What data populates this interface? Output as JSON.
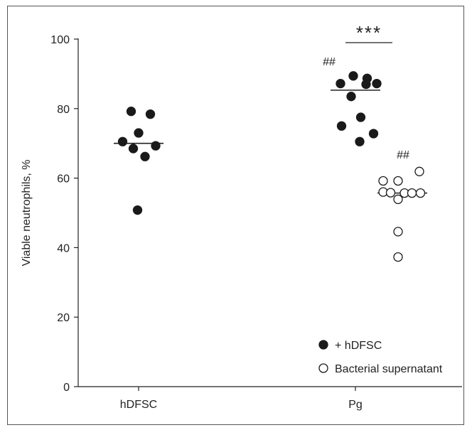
{
  "chart_data": {
    "type": "scatter",
    "title": "",
    "xlabel": "",
    "ylabel": "Viable neutrophils, %",
    "ylim": [
      0,
      100
    ],
    "yticks": [
      0,
      20,
      40,
      60,
      80,
      100
    ],
    "categories": [
      "hDFSC",
      "Pg"
    ],
    "series": [
      {
        "name": "+ hDFSC",
        "marker": "filled-circle",
        "color": "#1a1a1a",
        "points": [
          {
            "category": "hDFSC",
            "offset": -0.35,
            "y": 79.2
          },
          {
            "category": "hDFSC",
            "offset": 0.55,
            "y": 78.4
          },
          {
            "category": "hDFSC",
            "offset": -0.75,
            "y": 70.5
          },
          {
            "category": "hDFSC",
            "offset": 0.0,
            "y": 73.0
          },
          {
            "category": "hDFSC",
            "offset": -0.25,
            "y": 68.5
          },
          {
            "category": "hDFSC",
            "offset": 0.8,
            "y": 69.3
          },
          {
            "category": "hDFSC",
            "offset": 0.3,
            "y": 66.2
          },
          {
            "category": "hDFSC",
            "offset": -0.05,
            "y": 50.8
          },
          {
            "category": "Pg",
            "offset": -0.7,
            "y": 87.2
          },
          {
            "category": "Pg",
            "offset": -0.1,
            "y": 89.4
          },
          {
            "category": "Pg",
            "offset": 0.55,
            "y": 88.7
          },
          {
            "category": "Pg",
            "offset": 0.5,
            "y": 87.0
          },
          {
            "category": "Pg",
            "offset": 1.0,
            "y": 87.2
          },
          {
            "category": "Pg",
            "offset": -0.2,
            "y": 83.5
          },
          {
            "category": "Pg",
            "offset": 0.25,
            "y": 77.5
          },
          {
            "category": "Pg",
            "offset": -0.65,
            "y": 75.0
          },
          {
            "category": "Pg",
            "offset": 0.85,
            "y": 72.8
          },
          {
            "category": "Pg",
            "offset": 0.2,
            "y": 70.5
          }
        ],
        "medians": [
          {
            "category": "hDFSC",
            "y": 70.0
          },
          {
            "category": "Pg",
            "y": 85.3
          }
        ]
      },
      {
        "name": "Bacterial supernatant",
        "marker": "open-circle",
        "color": "#1a1a1a",
        "points": [
          {
            "category": "Pg",
            "offset": -0.9,
            "y": 59.2
          },
          {
            "category": "Pg",
            "offset": -0.2,
            "y": 59.2
          },
          {
            "category": "Pg",
            "offset": 0.8,
            "y": 61.9
          },
          {
            "category": "Pg",
            "offset": -0.9,
            "y": 56.0
          },
          {
            "category": "Pg",
            "offset": -0.55,
            "y": 55.8
          },
          {
            "category": "Pg",
            "offset": 0.1,
            "y": 55.7
          },
          {
            "category": "Pg",
            "offset": 0.45,
            "y": 55.7
          },
          {
            "category": "Pg",
            "offset": 0.85,
            "y": 55.7
          },
          {
            "category": "Pg",
            "offset": -0.2,
            "y": 53.9
          },
          {
            "category": "Pg",
            "offset": -0.2,
            "y": 44.6
          },
          {
            "category": "Pg",
            "offset": -0.2,
            "y": 37.3
          }
        ],
        "medians": [
          {
            "category": "Pg",
            "y": 55.7
          }
        ]
      }
    ],
    "annotations": [
      {
        "text": "##",
        "near": "+ hDFSC Pg group"
      },
      {
        "text": "##",
        "near": "Bacterial supernatant Pg group"
      },
      {
        "text": "***",
        "near": "bracket between Pg groups"
      }
    ],
    "legend": {
      "position": "bottom-right",
      "items": [
        "+ hDFSC",
        "Bacterial supernatant"
      ]
    },
    "grid": false
  }
}
